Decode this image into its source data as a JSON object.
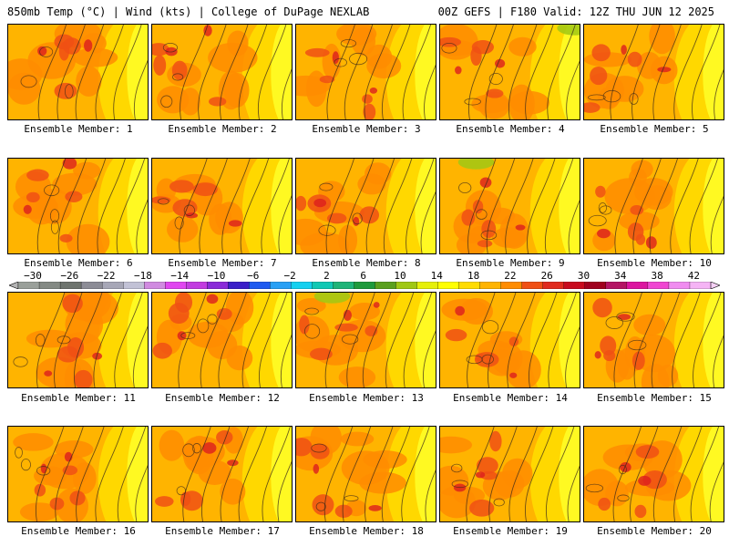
{
  "header": {
    "left": "850mb Temp (°C) | Wind (kts) | College of DuPage NEXLAB",
    "right": "00Z GEFS | F180 Valid: 12Z THU JUN 12 2025"
  },
  "members": [
    "Ensemble Member: 1",
    "Ensemble Member: 2",
    "Ensemble Member: 3",
    "Ensemble Member: 4",
    "Ensemble Member: 5",
    "Ensemble Member: 6",
    "Ensemble Member: 7",
    "Ensemble Member: 8",
    "Ensemble Member: 9",
    "Ensemble Member: 10",
    "Ensemble Member: 11",
    "Ensemble Member: 12",
    "Ensemble Member: 13",
    "Ensemble Member: 14",
    "Ensemble Member: 15",
    "Ensemble Member: 16",
    "Ensemble Member: 17",
    "Ensemble Member: 18",
    "Ensemble Member: 19",
    "Ensemble Member: 20"
  ],
  "colorbar": {
    "labels": [
      "−30",
      "−26",
      "−22",
      "−18",
      "−14",
      "−10",
      "−6",
      "−2",
      "2",
      "6",
      "10",
      "14",
      "18",
      "22",
      "26",
      "30",
      "34",
      "38",
      "42"
    ],
    "colors": [
      "#9aa09a",
      "#848a84",
      "#6e746e",
      "#8c8c96",
      "#a7a7b7",
      "#c2c2d6",
      "#d08be0",
      "#e046f0",
      "#c23ce0",
      "#8a2ad8",
      "#3a1ec8",
      "#1e5af0",
      "#28a0f5",
      "#14d0f0",
      "#10c8b4",
      "#1eb478",
      "#1e9a3c",
      "#5aa01e",
      "#a0c814",
      "#e6f00a",
      "#ffff00",
      "#ffdc00",
      "#ffb400",
      "#ff8c00",
      "#f05014",
      "#e02a1e",
      "#c80a1e",
      "#a0001e",
      "#b41464",
      "#dc14a0",
      "#f046d2",
      "#f08cf0",
      "#f5b4f5"
    ]
  },
  "map_colors": {
    "light_yellow": "#ffff28",
    "yellow": "#ffdc00",
    "gold": "#ffb400",
    "orange": "#ff8c00",
    "red_orange": "#f05014",
    "red": "#dc1e1e",
    "green": "#a0c814"
  }
}
